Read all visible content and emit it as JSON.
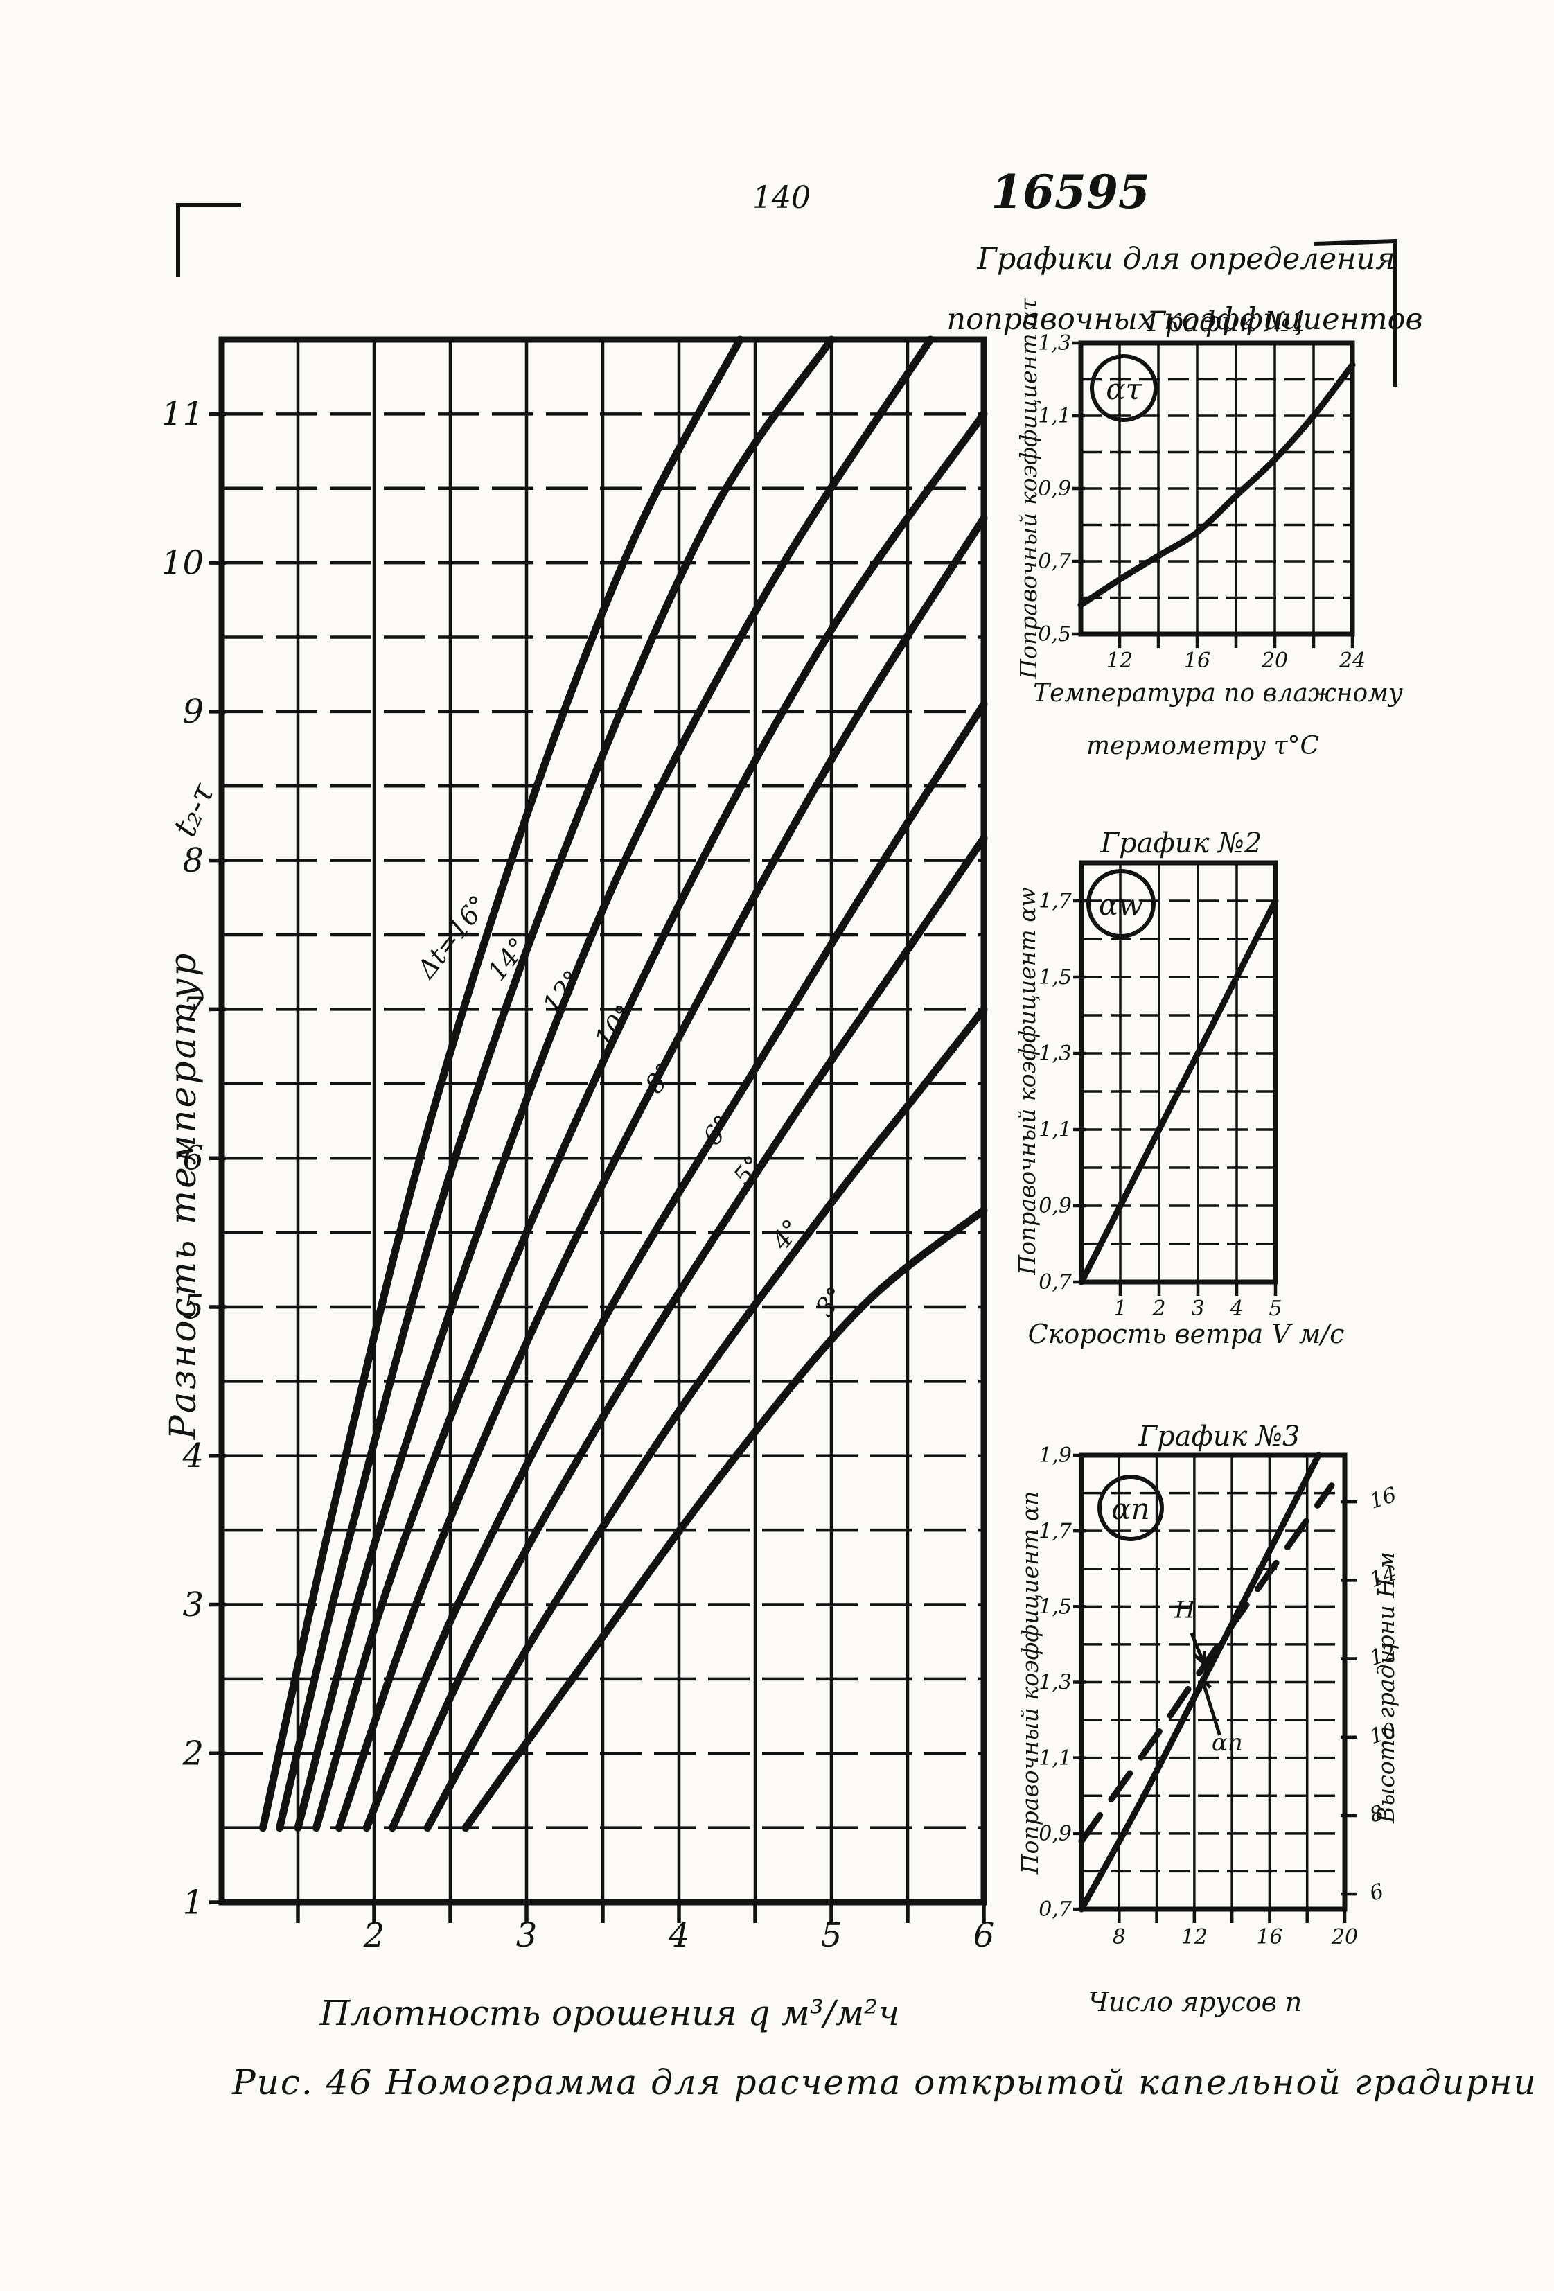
{
  "header": {
    "page_number": "140",
    "doc_number": "16595",
    "note_line1": "Графики для определения",
    "note_line2": "поправочных коэффициентов"
  },
  "caption": "Рис. 46  Номограмма для расчета открытой капельной градирни",
  "colors": {
    "ink": "#121212",
    "paper": "#fbfaf6"
  },
  "chart_data": [
    {
      "id": "nomogram",
      "type": "line",
      "title": "",
      "xlabel": "Плотность орошения q м³/м²ч",
      "ylabel": "Разность температур",
      "ylabel_formula": "t₂-τ",
      "xlim": [
        1,
        6
      ],
      "ylim": [
        1,
        11.5
      ],
      "grid": {
        "x_step": 0.5,
        "y_step": 0.5
      },
      "x_ticks": [
        [
          2,
          "2"
        ],
        [
          3,
          "3"
        ],
        [
          4,
          "4"
        ],
        [
          5,
          "5"
        ],
        [
          6,
          "6"
        ]
      ],
      "y_ticks": [
        [
          1,
          "1"
        ],
        [
          2,
          "2"
        ],
        [
          3,
          "3"
        ],
        [
          4,
          "4"
        ],
        [
          5,
          "5"
        ],
        [
          6,
          "6"
        ],
        [
          7,
          "7"
        ],
        [
          8,
          "8"
        ],
        [
          9,
          "9"
        ],
        [
          10,
          "10"
        ],
        [
          11,
          "11"
        ]
      ],
      "series": [
        {
          "name": "Δt=16°",
          "label": "Δt=16°",
          "label_at": [
            2.56,
            7.45
          ],
          "points": [
            [
              1.27,
              1.5
            ],
            [
              1.7,
              3.5
            ],
            [
              2.3,
              6.0
            ],
            [
              3.0,
              8.3
            ],
            [
              3.7,
              10.15
            ],
            [
              4.4,
              11.5
            ]
          ]
        },
        {
          "name": "Δt=14°",
          "label": "14°",
          "label_at": [
            2.92,
            7.3
          ],
          "points": [
            [
              1.38,
              1.5
            ],
            [
              1.85,
              3.5
            ],
            [
              2.5,
              5.9
            ],
            [
              3.3,
              8.2
            ],
            [
              4.2,
              10.3
            ],
            [
              5.0,
              11.5
            ]
          ]
        },
        {
          "name": "Δt=12°",
          "label": "12°",
          "label_at": [
            3.28,
            7.08
          ],
          "points": [
            [
              1.5,
              1.5
            ],
            [
              2.0,
              3.4
            ],
            [
              2.75,
              5.7
            ],
            [
              3.6,
              7.9
            ],
            [
              4.6,
              9.85
            ],
            [
              5.65,
              11.5
            ]
          ]
        },
        {
          "name": "Δt=10°",
          "label": "10°",
          "label_at": [
            3.62,
            6.85
          ],
          "points": [
            [
              1.62,
              1.5
            ],
            [
              2.15,
              3.3
            ],
            [
              3.0,
              5.5
            ],
            [
              4.0,
              7.7
            ],
            [
              5.0,
              9.55
            ],
            [
              6.0,
              11.0
            ]
          ]
        },
        {
          "name": "Δt=8°",
          "label": "8°",
          "label_at": [
            3.92,
            6.5
          ],
          "points": [
            [
              1.77,
              1.5
            ],
            [
              2.35,
              3.2
            ],
            [
              3.2,
              5.2
            ],
            [
              4.2,
              7.2
            ],
            [
              5.1,
              8.85
            ],
            [
              6.0,
              10.3
            ]
          ]
        },
        {
          "name": "Δt=6°",
          "label": "6°",
          "label_at": [
            4.3,
            6.15
          ],
          "points": [
            [
              1.95,
              1.5
            ],
            [
              2.55,
              3.0
            ],
            [
              3.5,
              4.9
            ],
            [
              4.5,
              6.6
            ],
            [
              5.25,
              7.85
            ],
            [
              6.0,
              9.05
            ]
          ]
        },
        {
          "name": "Δt=5°",
          "label": "5°",
          "label_at": [
            4.5,
            5.88
          ],
          "points": [
            [
              2.12,
              1.5
            ],
            [
              2.75,
              2.9
            ],
            [
              3.7,
              4.6
            ],
            [
              4.7,
              6.2
            ],
            [
              5.4,
              7.25
            ],
            [
              6.0,
              8.15
            ]
          ]
        },
        {
          "name": "Δt=4°",
          "label": "4°",
          "label_at": [
            4.75,
            5.45
          ],
          "points": [
            [
              2.35,
              1.5
            ],
            [
              3.0,
              2.7
            ],
            [
              4.0,
              4.3
            ],
            [
              5.0,
              5.7
            ],
            [
              5.5,
              6.35
            ],
            [
              6.0,
              7.0
            ]
          ]
        },
        {
          "name": "Δt=3°",
          "label": "3°",
          "label_at": [
            5.04,
            5.0
          ],
          "points": [
            [
              2.6,
              1.5
            ],
            [
              3.3,
              2.5
            ],
            [
              4.3,
              3.9
            ],
            [
              5.2,
              5.0
            ],
            [
              6.0,
              5.65
            ]
          ]
        }
      ]
    },
    {
      "id": "grafik1",
      "type": "line",
      "title": "График №1",
      "badge": "ατ",
      "xlabel_lines": [
        "Температура по влажному",
        "термометру  τ°C"
      ],
      "ylabel": "Поправочный коэффициент ατ",
      "xlim": [
        10,
        24
      ],
      "ylim": [
        0.5,
        1.3
      ],
      "grid": {
        "x_step": 2,
        "y_step": 0.1
      },
      "x_ticks": [
        [
          12,
          "12"
        ],
        [
          16,
          "16"
        ],
        [
          20,
          "20"
        ],
        [
          24,
          "24"
        ]
      ],
      "y_ticks": [
        [
          0.5,
          "0,5"
        ],
        [
          0.7,
          "0,7"
        ],
        [
          0.9,
          "0,9"
        ],
        [
          1.1,
          "1,1"
        ],
        [
          1.3,
          "1,3"
        ]
      ],
      "series": [
        {
          "name": "ατ",
          "points": [
            [
              10,
              0.58
            ],
            [
              12,
              0.65
            ],
            [
              14,
              0.715
            ],
            [
              16,
              0.78
            ],
            [
              18,
              0.88
            ],
            [
              20,
              0.98
            ],
            [
              22,
              1.1
            ],
            [
              24,
              1.24
            ]
          ]
        }
      ]
    },
    {
      "id": "grafik2",
      "type": "line",
      "title": "График №2",
      "badge": "αw",
      "xlabel": "Скорость ветра V м/с",
      "ylabel": "Поправочный коэффициент αw",
      "xlim": [
        0,
        5
      ],
      "ylim": [
        0.7,
        1.8
      ],
      "grid": {
        "x_step": 1,
        "y_step": 0.1
      },
      "x_ticks": [
        [
          1,
          "1"
        ],
        [
          2,
          "2"
        ],
        [
          3,
          "3"
        ],
        [
          4,
          "4"
        ],
        [
          5,
          "5"
        ]
      ],
      "y_ticks": [
        [
          0.7,
          "0,7"
        ],
        [
          0.9,
          "0,9"
        ],
        [
          1.1,
          "1,1"
        ],
        [
          1.3,
          "1,3"
        ],
        [
          1.5,
          "1,5"
        ],
        [
          1.7,
          "1,7"
        ]
      ],
      "series": [
        {
          "name": "αw",
          "points": [
            [
              0,
              0.7
            ],
            [
              2.5,
              1.2
            ],
            [
              5,
              1.7
            ]
          ]
        }
      ]
    },
    {
      "id": "grafik3",
      "type": "line",
      "title": "График №3",
      "badge": "αn",
      "xlabel": "Число ярусов n",
      "ylabel": "Поправочный коэффициент αn",
      "y2label": "Высота градирни H м",
      "xlim": [
        6,
        20
      ],
      "ylim": [
        0.7,
        1.9
      ],
      "grid": {
        "x_step": 2,
        "y_step": 0.1
      },
      "x_ticks": [
        [
          8,
          "8"
        ],
        [
          12,
          "12"
        ],
        [
          16,
          "16"
        ],
        [
          20,
          "20"
        ]
      ],
      "y_ticks": [
        [
          0.7,
          "0,7"
        ],
        [
          0.9,
          "0,9"
        ],
        [
          1.1,
          "1,1"
        ],
        [
          1.3,
          "1,3"
        ],
        [
          1.5,
          "1,5"
        ],
        [
          1.7,
          "1,7"
        ],
        [
          1.9,
          "1,9"
        ]
      ],
      "y2_ticks": [
        [
          6,
          "6"
        ],
        [
          8,
          "8"
        ],
        [
          10,
          "10"
        ],
        [
          12,
          "12"
        ],
        [
          14,
          "14"
        ],
        [
          16,
          "16"
        ]
      ],
      "series": [
        {
          "name": "αn",
          "style": "solid",
          "label": "αn",
          "label_at": [
            13.75,
            1.12
          ],
          "arrow": [
            [
              13.35,
              1.16
            ],
            [
              12.4,
              1.31
            ]
          ],
          "points": [
            [
              6,
              0.7
            ],
            [
              9,
              0.97
            ],
            [
              12,
              1.26
            ],
            [
              15,
              1.55
            ],
            [
              18.6,
              1.9
            ]
          ]
        },
        {
          "name": "H",
          "style": "dashed",
          "label": "H",
          "label_at": [
            11.5,
            1.47
          ],
          "arrow": [
            [
              11.85,
              1.43
            ],
            [
              12.5,
              1.35
            ]
          ],
          "points": [
            [
              6,
              0.88
            ],
            [
              10,
              1.16
            ],
            [
              14,
              1.45
            ],
            [
              19.3,
              1.82
            ]
          ]
        }
      ]
    }
  ]
}
